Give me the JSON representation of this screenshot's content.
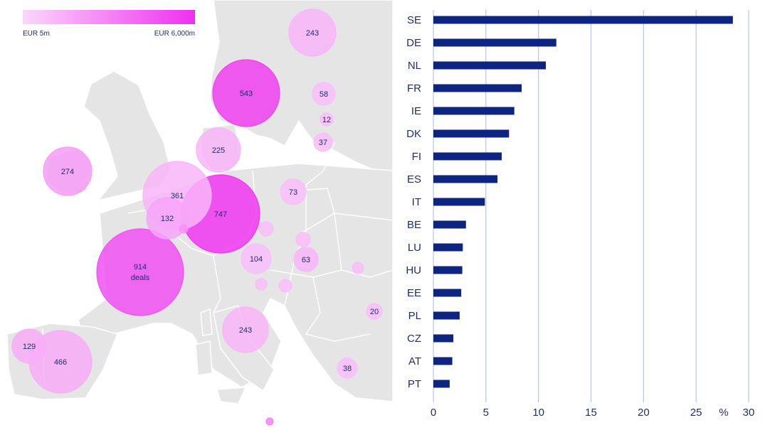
{
  "chart_data": [
    {
      "type": "bubble-map",
      "legend": {
        "min_label": "EUR 5m",
        "max_label": "EUR 6,000m",
        "min_color": "#fbd7fb",
        "max_color": "#ef2ff0"
      },
      "bubbles": [
        {
          "country": "SE",
          "deals": "543",
          "intensity": 0.9
        },
        {
          "country": "FI",
          "deals": "243",
          "intensity": 0.2
        },
        {
          "country": "EE",
          "deals": "58",
          "intensity": 0.15
        },
        {
          "country": "LV",
          "deals": "12",
          "intensity": 0.15
        },
        {
          "country": "LT",
          "deals": "37",
          "intensity": 0.15
        },
        {
          "country": "DK",
          "deals": "225",
          "intensity": 0.2
        },
        {
          "country": "IE",
          "deals": "274",
          "intensity": 0.35
        },
        {
          "country": "NL",
          "deals": "361",
          "intensity": 0.2
        },
        {
          "country": "BE",
          "deals": "132",
          "intensity": 0.3
        },
        {
          "country": "LU",
          "deals": "",
          "intensity": 0.4
        },
        {
          "country": "DE",
          "deals": "747",
          "intensity": 0.95
        },
        {
          "country": "PL",
          "deals": "73",
          "intensity": 0.15
        },
        {
          "country": "CZ",
          "deals": "",
          "intensity": 0.15
        },
        {
          "country": "SK",
          "deals": "",
          "intensity": 0.15
        },
        {
          "country": "AT",
          "deals": "104",
          "intensity": 0.15
        },
        {
          "country": "HU",
          "deals": "63",
          "intensity": 0.2
        },
        {
          "country": "FR",
          "deals": "914",
          "deals_label": "deals",
          "intensity": 0.8
        },
        {
          "country": "SI",
          "deals": "",
          "intensity": 0.15
        },
        {
          "country": "HR",
          "deals": "",
          "intensity": 0.15
        },
        {
          "country": "RO",
          "deals": "",
          "intensity": 0.15
        },
        {
          "country": "BG",
          "deals": "20",
          "intensity": 0.15
        },
        {
          "country": "IT",
          "deals": "243",
          "intensity": 0.2
        },
        {
          "country": "PT",
          "deals": "129",
          "intensity": 0.25
        },
        {
          "country": "ES",
          "deals": "466",
          "intensity": 0.25
        },
        {
          "country": "GR",
          "deals": "38",
          "intensity": 0.15
        },
        {
          "country": "MT",
          "deals": "",
          "intensity": 0.5
        }
      ]
    },
    {
      "type": "bar",
      "orientation": "horizontal",
      "categories": [
        "SE",
        "DE",
        "NL",
        "FR",
        "IE",
        "DK",
        "FI",
        "ES",
        "IT",
        "BE",
        "LU",
        "HU",
        "EE",
        "PL",
        "CZ",
        "AT",
        "PT"
      ],
      "values": [
        28.5,
        11.7,
        10.7,
        8.4,
        7.7,
        7.2,
        6.5,
        6.1,
        4.9,
        3.1,
        2.8,
        2.75,
        2.65,
        2.5,
        1.9,
        1.8,
        1.55
      ],
      "xlim": [
        0,
        30
      ],
      "xticks": [
        "0",
        "5",
        "10",
        "15",
        "20",
        "25",
        "30"
      ],
      "unit_label": "%",
      "grid": "vertical",
      "bar_color": "#0d2481",
      "grid_color": "#bcc7e6"
    }
  ]
}
